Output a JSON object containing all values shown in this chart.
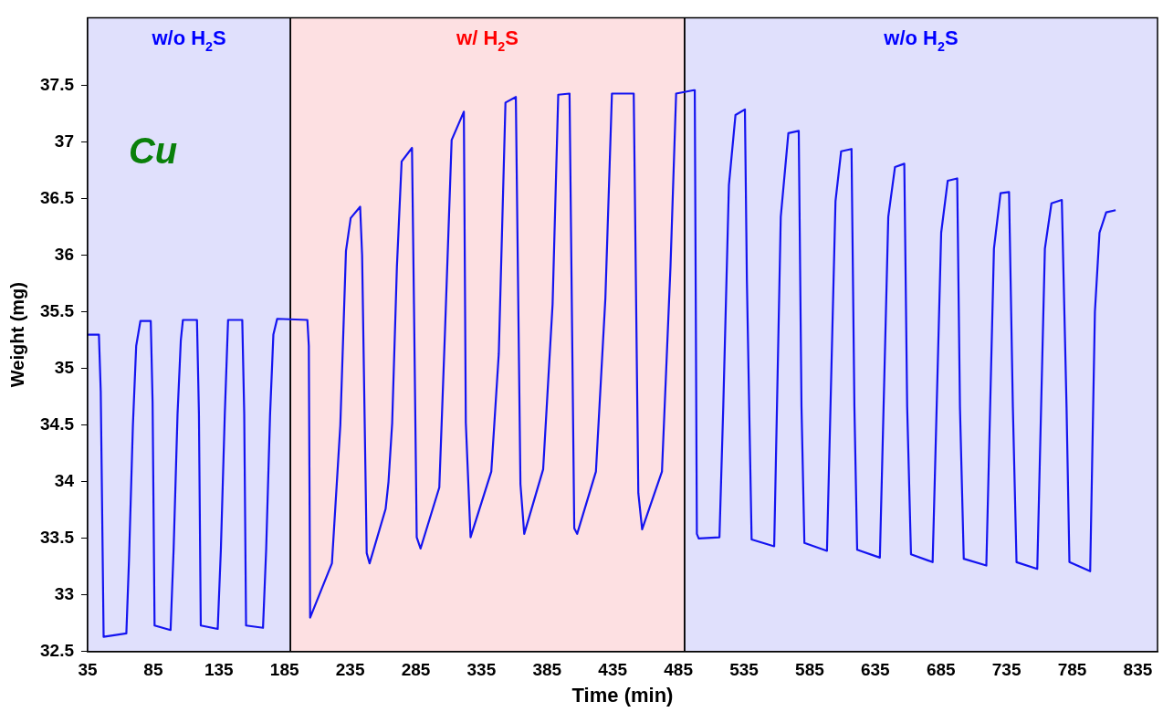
{
  "chart_data": {
    "type": "line",
    "xlabel": "Time (min)",
    "ylabel": "Weight (mg)",
    "xlim": [
      35,
      850
    ],
    "ylim": [
      32.5,
      38.1
    ],
    "xticks": [
      35,
      85,
      135,
      185,
      235,
      285,
      335,
      385,
      435,
      485,
      535,
      585,
      635,
      685,
      735,
      785,
      835
    ],
    "yticks": [
      32.5,
      33,
      33.5,
      34,
      34.5,
      35,
      35.5,
      36,
      36.5,
      37,
      37.5
    ],
    "grid": false,
    "legend": false,
    "bands": [
      {
        "axis": "x",
        "from": 35,
        "to": 189.5,
        "label": "w/o H$_{2}$S",
        "color": "#e0e0fc"
      },
      {
        "axis": "x",
        "from": 189.5,
        "to": 489.7,
        "label": "w/ H$_{2}$S",
        "color": "#fde0e2"
      },
      {
        "axis": "x",
        "from": 489.7,
        "to": 850,
        "label": "w/o H$_{2}$S",
        "color": "#e0e0fc"
      }
    ],
    "annotations": [
      "Cu"
    ],
    "series": [
      {
        "color": "#1414f0",
        "x": [
          35,
          43.6,
          45,
          47.2,
          64.5,
          66.5,
          69.5,
          72,
          75.2,
          83.1,
          84.5,
          86.0,
          98.2,
          100.5,
          103.5,
          106,
          107.6,
          118.3,
          119.8,
          121.2,
          134.1,
          136.5,
          139.5,
          142,
          152.8,
          154.3,
          155.7,
          168.6,
          171,
          174,
          176.5,
          179.4,
          202.4,
          203.5,
          204.5,
          221.1,
          227.5,
          231.8,
          235.4,
          242.6,
          244.1,
          247.6,
          249.8,
          262.0,
          264.2,
          267.0,
          270.6,
          274.2,
          282.1,
          283.6,
          285.7,
          288.6,
          302.9,
          307.3,
          312.3,
          321.6,
          323.1,
          326.7,
          342.5,
          348.2,
          353.3,
          361.2,
          364.7,
          367.6,
          382.0,
          389.2,
          393.5,
          402.1,
          405.7,
          407.9,
          422.2,
          429.4,
          434.4,
          451.0,
          454.5,
          457.4,
          472.5,
          479.0,
          483.3,
          496.9,
          497.5,
          499.1,
          500.5,
          516.3,
          519.2,
          523.5,
          528.5,
          535.7,
          537.2,
          540.8,
          558.0,
          563.0,
          568.8,
          576.7,
          578.8,
          581.0,
          598.2,
          604.7,
          609.0,
          616.9,
          619.1,
          621.2,
          638.5,
          644.9,
          650.0,
          657.1,
          659.3,
          662.2,
          678.7,
          685.2,
          690.2,
          697.4,
          699.5,
          702.4,
          719.6,
          725.4,
          730.4,
          736.9,
          739.8,
          742.6,
          758.4,
          764.2,
          769.2,
          777.1,
          780.7,
          782.9,
          798.7,
          802.3,
          805.8,
          810.9,
          818.1
        ],
        "values": [
          35.3,
          35.3,
          34.8,
          32.63,
          32.66,
          33.3,
          34.5,
          35.2,
          35.42,
          35.42,
          34.7,
          32.73,
          32.69,
          33.4,
          34.6,
          35.25,
          35.43,
          35.43,
          34.6,
          32.73,
          32.7,
          33.4,
          34.6,
          35.43,
          35.43,
          34.6,
          32.73,
          32.71,
          33.4,
          34.6,
          35.3,
          35.44,
          35.43,
          35.2,
          32.8,
          33.28,
          34.5,
          36.04,
          36.33,
          36.43,
          36.0,
          33.37,
          33.28,
          33.76,
          34.0,
          34.52,
          35.9,
          36.83,
          36.95,
          35.57,
          33.51,
          33.41,
          33.95,
          35.35,
          37.02,
          37.27,
          34.52,
          33.51,
          34.09,
          35.13,
          37.35,
          37.4,
          33.98,
          33.54,
          34.11,
          35.57,
          37.42,
          37.43,
          33.59,
          33.54,
          34.09,
          35.62,
          37.43,
          37.43,
          33.9,
          33.58,
          34.09,
          35.9,
          37.43,
          37.46,
          37.46,
          33.54,
          33.5,
          33.51,
          34.66,
          36.62,
          37.24,
          37.29,
          35.78,
          33.49,
          33.43,
          36.34,
          37.08,
          37.1,
          34.66,
          33.46,
          33.39,
          36.48,
          36.92,
          36.94,
          34.66,
          33.4,
          33.33,
          36.34,
          36.78,
          36.81,
          34.66,
          33.36,
          33.29,
          36.2,
          36.66,
          36.68,
          34.66,
          33.32,
          33.26,
          36.06,
          36.55,
          36.56,
          34.66,
          33.29,
          33.23,
          36.06,
          36.46,
          36.49,
          34.66,
          33.29,
          33.21,
          35.5,
          36.2,
          36.38,
          36.4
        ]
      }
    ]
  }
}
